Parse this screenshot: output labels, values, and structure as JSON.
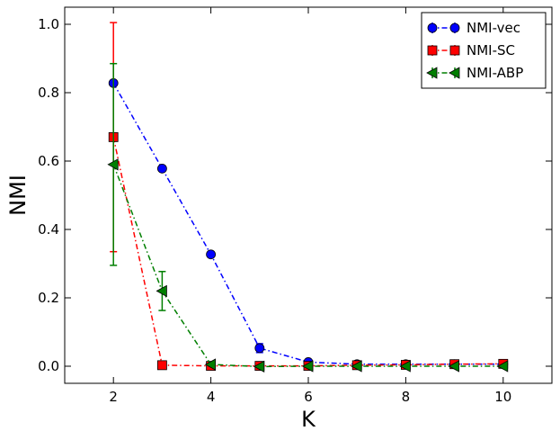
{
  "chart_data": {
    "type": "line",
    "xlabel": "K",
    "ylabel": "NMI",
    "xlim": [
      1,
      11
    ],
    "ylim": [
      -0.05,
      1.05
    ],
    "xticks": [
      2,
      4,
      6,
      8,
      10
    ],
    "xtick_labels": [
      "2",
      "4",
      "6",
      "8",
      "10"
    ],
    "yticks": [
      0.0,
      0.2,
      0.4,
      0.6,
      0.8,
      1.0
    ],
    "ytick_labels": [
      "0.0",
      "0.2",
      "0.4",
      "0.6",
      "0.8",
      "1.0"
    ],
    "grid": false,
    "legend_position": "top-right",
    "x": [
      2,
      3,
      4,
      5,
      6,
      7,
      8,
      9,
      10
    ],
    "series": [
      {
        "name": "NMI-vec",
        "color": "#0000ff",
        "marker": "circle",
        "values": [
          0.828,
          0.578,
          0.327,
          0.053,
          0.012,
          0.006,
          0.006,
          0.006,
          0.006
        ],
        "errors": [
          0.0,
          0.0,
          0.0,
          0.013,
          0.004,
          0.002,
          0.002,
          0.002,
          0.002
        ]
      },
      {
        "name": "NMI-SC",
        "color": "#ff0000",
        "marker": "square",
        "values": [
          0.67,
          0.003,
          0.001,
          0.001,
          0.001,
          0.003,
          0.004,
          0.006,
          0.007
        ],
        "errors": [
          0.335,
          0.0,
          0.0,
          0.0,
          0.0,
          0.0,
          0.0,
          0.0,
          0.0
        ]
      },
      {
        "name": "NMI-ABP",
        "color": "#007f00",
        "marker": "triangle-left",
        "values": [
          0.59,
          0.22,
          0.005,
          -0.001,
          0.0,
          0.0,
          0.0,
          0.0,
          0.0
        ],
        "errors": [
          0.295,
          0.057,
          0.002,
          0.0,
          0.0,
          0.0,
          0.0,
          0.0,
          0.0
        ]
      }
    ]
  }
}
